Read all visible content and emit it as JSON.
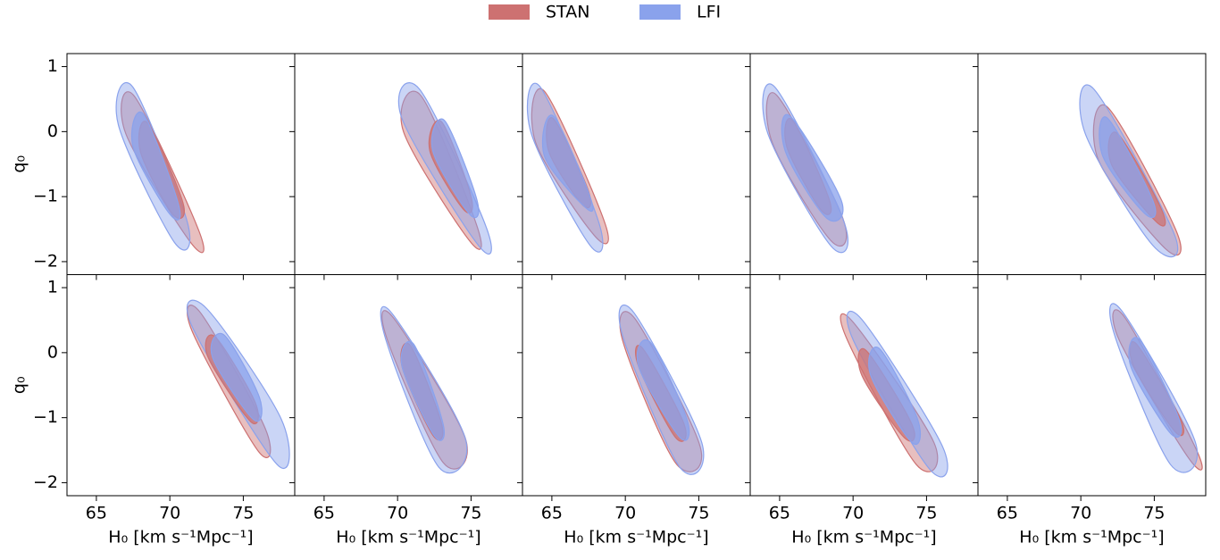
{
  "legend": [
    {
      "name": "STAN",
      "color": "#cd7171"
    },
    {
      "name": "LFI",
      "color": "#8aa2ec"
    }
  ],
  "chart_data": [
    {
      "type": "contour",
      "xlim": [
        63,
        78.5
      ],
      "ylim": [
        -2.2,
        1.2
      ],
      "xticks": [
        65,
        70,
        75
      ],
      "yticks": [
        1,
        0,
        {
          "value": -1,
          "label": "−1"
        },
        {
          "value": -2,
          "label": "−2"
        }
      ],
      "ylabel": "q₀",
      "series": [
        {
          "contours": [
            {
              "x": [
                67.6,
                72.0,
                71.4,
                67.0
              ],
              "y": [
                0.54,
                -1.54,
                -1.7,
                -0.03
              ]
            },
            {
              "x": [
                68.5,
                70.9,
                70.2,
                68.0
              ],
              "y": [
                0.13,
                -1.1,
                -1.27,
                -0.31
              ]
            }
          ]
        },
        {
          "contours": [
            {
              "x": [
                67.5,
                71.2,
                70.3,
                66.5
              ],
              "y": [
                0.68,
                -1.4,
                -1.7,
                0.1
              ]
            },
            {
              "x": [
                68.2,
                70.6,
                70.0,
                67.5
              ],
              "y": [
                0.27,
                -1.13,
                -1.27,
                -0.24
              ]
            }
          ]
        }
      ]
    },
    {
      "type": "contour",
      "xlim": [
        63,
        78.5
      ],
      "ylim": [
        -2.2,
        1.2
      ],
      "xticks": [
        65,
        70,
        75
      ],
      "yticks": [
        1,
        0,
        -1,
        -2
      ],
      "series": [
        {
          "contours": [
            {
              "x": [
                71.6,
                75.4,
                74.9,
                70.4
              ],
              "y": [
                0.55,
                -1.45,
                -1.68,
                0.0
              ]
            },
            {
              "x": [
                73.0,
                75.0,
                74.5,
                72.2
              ],
              "y": [
                0.15,
                -1.0,
                -1.2,
                -0.3
              ]
            }
          ]
        },
        {
          "contours": [
            {
              "x": [
                71.5,
                76.0,
                75.5,
                70.3
              ],
              "y": [
                0.65,
                -1.45,
                -1.75,
                0.2
              ]
            },
            {
              "x": [
                73.2,
                75.4,
                74.9,
                72.4
              ],
              "y": [
                0.17,
                -1.05,
                -1.27,
                -0.3
              ]
            }
          ]
        }
      ]
    },
    {
      "type": "contour",
      "xlim": [
        63,
        78.5
      ],
      "ylim": [
        -2.2,
        1.2
      ],
      "xticks": [
        65,
        70,
        75
      ],
      "yticks": [
        1,
        0,
        -1,
        -2
      ],
      "series": [
        {
          "contours": [
            {
              "x": [
                64.5,
                68.6,
                67.9,
                63.9
              ],
              "y": [
                0.62,
                -1.4,
                -1.6,
                -0.17
              ]
            },
            {
              "x": [
                65.1,
                67.5,
                67.1,
                64.8
              ],
              "y": [
                0.2,
                -0.92,
                -1.13,
                -0.31
              ]
            }
          ]
        },
        {
          "contours": [
            {
              "x": [
                64.2,
                68.2,
                67.6,
                63.6
              ],
              "y": [
                0.69,
                -1.4,
                -1.75,
                -0.03
              ]
            },
            {
              "x": [
                65.1,
                67.6,
                67.3,
                64.5
              ],
              "y": [
                0.24,
                -1.0,
                -1.17,
                -0.38
              ]
            }
          ]
        }
      ]
    },
    {
      "type": "contour",
      "xlim": [
        63,
        78.5
      ],
      "ylim": [
        -2.2,
        1.2
      ],
      "xticks": [
        65,
        70,
        75
      ],
      "yticks": [
        1,
        0,
        -1,
        -2
      ],
      "series": [
        {
          "contours": [
            {
              "x": [
                64.8,
                69.3,
                68.5,
                64.5
              ],
              "y": [
                0.56,
                -1.33,
                -1.68,
                -0.17
              ]
            },
            {
              "x": [
                65.9,
                68.4,
                67.8,
                65.5
              ],
              "y": [
                0.17,
                -1.06,
                -1.2,
                -0.24
              ]
            }
          ]
        },
        {
          "contours": [
            {
              "x": [
                64.7,
                69.4,
                68.5,
                64.2
              ],
              "y": [
                0.68,
                -1.4,
                -1.76,
                -0.03
              ]
            },
            {
              "x": [
                65.7,
                69.2,
                68.2,
                65.4
              ],
              "y": [
                0.24,
                -1.06,
                -1.33,
                -0.31
              ]
            }
          ]
        }
      ]
    },
    {
      "type": "contour",
      "xlim": [
        63,
        78.5
      ],
      "ylim": [
        -2.2,
        1.2
      ],
      "xticks": [
        65,
        70,
        75
      ],
      "yticks": [
        1,
        0,
        -1,
        -2
      ],
      "series": [
        {
          "contours": [
            {
              "x": [
                71.8,
                76.5,
                75.8,
                71.2
              ],
              "y": [
                0.38,
                -1.53,
                -1.81,
                -0.44
              ]
            },
            {
              "x": [
                72.5,
                75.5,
                75.2,
                72.1
              ],
              "y": [
                -0.03,
                -1.2,
                -1.4,
                -0.51
              ]
            }
          ]
        },
        {
          "contours": [
            {
              "x": [
                70.9,
                76.4,
                74.9,
                70.3
              ],
              "y": [
                0.65,
                -1.6,
                -1.75,
                -0.03
              ]
            },
            {
              "x": [
                71.8,
                74.9,
                74.4,
                71.5
              ],
              "y": [
                0.21,
                -1.06,
                -1.27,
                -0.38
              ]
            }
          ]
        }
      ]
    },
    {
      "type": "contour",
      "xlim": [
        63,
        78.5
      ],
      "ylim": [
        -2.2,
        1.2
      ],
      "xticks": [
        65,
        70,
        75
      ],
      "yticks": [
        1,
        0,
        {
          "value": -1,
          "label": "−1"
        },
        {
          "value": -2,
          "label": "−2"
        }
      ],
      "xlabel": "H₀ [km s⁻¹Mpc⁻¹]",
      "ylabel": "q₀",
      "series": [
        {
          "contours": [
            {
              "x": [
                72.1,
                76.5,
                76.0,
                71.5
              ],
              "y": [
                0.61,
                -1.17,
                -1.51,
                0.34
              ]
            },
            {
              "x": [
                73.1,
                75.8,
                75.5,
                72.6
              ],
              "y": [
                0.24,
                -0.76,
                -1.06,
                -0.07
              ]
            }
          ]
        },
        {
          "contours": [
            {
              "x": [
                72.5,
                77.6,
                77.3,
                71.5
              ],
              "y": [
                0.68,
                -1.03,
                -1.72,
                0.41
              ]
            },
            {
              "x": [
                73.7,
                76.1,
                75.7,
                72.9
              ],
              "y": [
                0.27,
                -0.69,
                -1.03,
                -0.07
              ]
            }
          ]
        }
      ]
    },
    {
      "type": "contour",
      "xlim": [
        63,
        78.5
      ],
      "ylim": [
        -2.2,
        1.2
      ],
      "xticks": [
        65,
        70,
        75
      ],
      "yticks": [
        1,
        0,
        -1,
        -2
      ],
      "xlabel": "H₀ [km s⁻¹Mpc⁻¹]",
      "series": [
        {
          "contours": [
            {
              "x": [
                69.7,
                74.6,
                73.1,
                69.3
              ],
              "y": [
                0.54,
                -1.31,
                -1.69,
                0.2
              ]
            },
            {
              "x": [
                70.9,
                73.0,
                72.4,
                70.3
              ],
              "y": [
                0.1,
                -1.1,
                -1.27,
                -0.21
              ]
            }
          ]
        },
        {
          "contours": [
            {
              "x": [
                69.6,
                74.6,
                72.8,
                69.2
              ],
              "y": [
                0.61,
                -1.31,
                -1.76,
                0.2
              ]
            },
            {
              "x": [
                71.1,
                73.1,
                72.5,
                70.3
              ],
              "y": [
                0.13,
                -1.1,
                -1.28,
                -0.21
              ]
            }
          ]
        }
      ]
    },
    {
      "type": "contour",
      "xlim": [
        63,
        78.5
      ],
      "ylim": [
        -2.2,
        1.2
      ],
      "xticks": [
        65,
        70,
        75
      ],
      "yticks": [
        1,
        0,
        -1,
        -2
      ],
      "xlabel": "H₀ [km s⁻¹Mpc⁻¹]",
      "series": [
        {
          "contours": [
            {
              "x": [
                70.7,
                75.1,
                73.4,
                69.8
              ],
              "y": [
                0.51,
                -1.45,
                -1.69,
                0.2
              ]
            },
            {
              "x": [
                71.2,
                74.0,
                73.4,
                70.9
              ],
              "y": [
                0.06,
                -1.1,
                -1.3,
                -0.21
              ]
            }
          ]
        },
        {
          "contours": [
            {
              "x": [
                70.6,
                75.2,
                73.7,
                69.8
              ],
              "y": [
                0.61,
                -1.38,
                -1.76,
                0.27
              ]
            },
            {
              "x": [
                71.7,
                74.2,
                73.7,
                70.9
              ],
              "y": [
                0.16,
                -1.03,
                -1.3,
                -0.21
              ]
            }
          ]
        }
      ]
    },
    {
      "type": "contour",
      "xlim": [
        63,
        78.5
      ],
      "ylim": [
        -2.2,
        1.2
      ],
      "xticks": [
        65,
        70,
        75
      ],
      "yticks": [
        1,
        0,
        -1,
        -2
      ],
      "xlabel": "H₀ [km s⁻¹Mpc⁻¹]",
      "series": [
        {
          "contours": [
            {
              "x": [
                70.0,
                75.5,
                74.3,
                69.6
              ],
              "y": [
                0.47,
                -1.38,
                -1.72,
                0.2
              ]
            },
            {
              "x": [
                70.9,
                74.0,
                73.5,
                70.6
              ],
              "y": [
                0.03,
                -1.1,
                -1.31,
                -0.35
              ]
            }
          ]
        },
        {
          "contours": [
            {
              "x": [
                70.6,
                76.1,
                75.2,
                70.0
              ],
              "y": [
                0.51,
                -1.45,
                -1.79,
                0.2
              ]
            },
            {
              "x": [
                71.8,
                74.4,
                74.0,
                71.2
              ],
              "y": [
                0.06,
                -1.03,
                -1.38,
                -0.35
              ]
            }
          ]
        }
      ]
    },
    {
      "type": "contour",
      "xlim": [
        63,
        78.5
      ],
      "ylim": [
        -2.2,
        1.2
      ],
      "xticks": [
        65,
        70,
        75
      ],
      "yticks": [
        1,
        0,
        -1,
        -2
      ],
      "xlabel": "H₀ [km s⁻¹Mpc⁻¹]",
      "series": [
        {
          "contours": [
            {
              "x": [
                73.0,
                77.9,
                77.3,
                72.6
              ],
              "y": [
                0.54,
                -1.51,
                -1.61,
                0.2
              ]
            },
            {
              "x": [
                73.8,
                76.8,
                76.4,
                73.6
              ],
              "y": [
                0.13,
                -1.03,
                -1.21,
                -0.21
              ]
            }
          ]
        },
        {
          "contours": [
            {
              "x": [
                72.8,
                77.8,
                76.1,
                72.3
              ],
              "y": [
                0.64,
                -1.38,
                -1.72,
                0.27
              ]
            },
            {
              "x": [
                74.0,
                76.7,
                76.1,
                73.4
              ],
              "y": [
                0.2,
                -1.03,
                -1.24,
                -0.21
              ]
            }
          ]
        }
      ]
    }
  ]
}
